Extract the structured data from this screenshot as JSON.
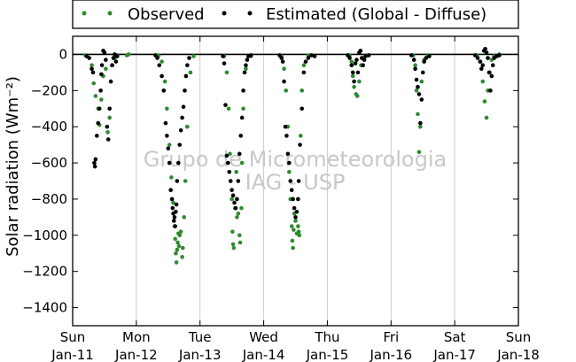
{
  "chart_data": {
    "type": "scatter",
    "ylabel": "Solar radiation (Wm⁻²)",
    "ylim": [
      -1500,
      100
    ],
    "yticks": [
      0,
      -200,
      -400,
      -600,
      -800,
      -1000,
      -1200,
      -1400
    ],
    "xlim": [
      0,
      7
    ],
    "xticks": [
      {
        "x": 0,
        "top": "Sun",
        "bottom": "Jan-11"
      },
      {
        "x": 1,
        "top": "Mon",
        "bottom": "Jan-12"
      },
      {
        "x": 2,
        "top": "Tue",
        "bottom": "Jan-13"
      },
      {
        "x": 3,
        "top": "Wed",
        "bottom": "Jan-14"
      },
      {
        "x": 4,
        "top": "Thu",
        "bottom": "Jan-15"
      },
      {
        "x": 5,
        "top": "Fri",
        "bottom": "Jan-16"
      },
      {
        "x": 6,
        "top": "Sat",
        "bottom": "Jan-17"
      },
      {
        "x": 7,
        "top": "Sun",
        "bottom": "Jan-18"
      }
    ],
    "grid": "vertical",
    "zero_line": true,
    "legend_position": "top-center",
    "watermark": [
      "Grupo de Micrometeorologia",
      "IAG - USP"
    ],
    "series": [
      {
        "name": "Observed",
        "color": "#2e8b2e",
        "marker": "dot",
        "points": [
          [
            0.2,
            -5
          ],
          [
            0.3,
            -60
          ],
          [
            0.33,
            -160
          ],
          [
            0.36,
            -230
          ],
          [
            0.4,
            -300
          ],
          [
            0.42,
            -390
          ],
          [
            0.45,
            -250
          ],
          [
            0.48,
            -120
          ],
          [
            0.52,
            -80
          ],
          [
            0.55,
            -430
          ],
          [
            0.58,
            -350
          ],
          [
            0.62,
            -60
          ],
          [
            0.66,
            -20
          ],
          [
            0.7,
            -5
          ],
          [
            0.85,
            -5
          ],
          [
            0.88,
            0
          ],
          [
            1.35,
            -5
          ],
          [
            1.4,
            -40
          ],
          [
            1.45,
            -150
          ],
          [
            1.48,
            -300
          ],
          [
            1.52,
            -500
          ],
          [
            1.55,
            -680
          ],
          [
            1.58,
            -820
          ],
          [
            1.6,
            -950
          ],
          [
            1.61,
            -1020
          ],
          [
            1.62,
            -1100
          ],
          [
            1.63,
            -1150
          ],
          [
            1.64,
            -1080
          ],
          [
            1.65,
            -1040
          ],
          [
            1.66,
            -990
          ],
          [
            1.67,
            -1060
          ],
          [
            1.68,
            -1000
          ],
          [
            1.7,
            -980
          ],
          [
            1.72,
            -1120
          ],
          [
            1.73,
            -1070
          ],
          [
            1.75,
            -900
          ],
          [
            1.77,
            -700
          ],
          [
            1.8,
            -400
          ],
          [
            1.85,
            -100
          ],
          [
            1.9,
            -10
          ],
          [
            2.38,
            -10
          ],
          [
            2.42,
            -100
          ],
          [
            2.45,
            -300
          ],
          [
            2.47,
            -550
          ],
          [
            2.48,
            -700
          ],
          [
            2.5,
            -800
          ],
          [
            2.51,
            -980
          ],
          [
            2.52,
            -1050
          ],
          [
            2.53,
            -1070
          ],
          [
            2.55,
            -850
          ],
          [
            2.57,
            -650
          ],
          [
            2.58,
            -900
          ],
          [
            2.6,
            -880
          ],
          [
            2.62,
            -1000
          ],
          [
            2.63,
            -1040
          ],
          [
            2.65,
            -850
          ],
          [
            2.66,
            -600
          ],
          [
            2.68,
            -300
          ],
          [
            2.72,
            -80
          ],
          [
            2.8,
            -10
          ],
          [
            3.28,
            -10
          ],
          [
            3.32,
            -80
          ],
          [
            3.35,
            -200
          ],
          [
            3.38,
            -400
          ],
          [
            3.4,
            -650
          ],
          [
            3.42,
            -800
          ],
          [
            3.44,
            -950
          ],
          [
            3.45,
            -1030
          ],
          [
            3.46,
            -1070
          ],
          [
            3.47,
            -970
          ],
          [
            3.48,
            -880
          ],
          [
            3.5,
            -920
          ],
          [
            3.52,
            -990
          ],
          [
            3.54,
            -950
          ],
          [
            3.55,
            -980
          ],
          [
            3.56,
            -1000
          ],
          [
            3.58,
            -450
          ],
          [
            3.6,
            -200
          ],
          [
            3.63,
            -60
          ],
          [
            3.7,
            -5
          ],
          [
            4.35,
            -5
          ],
          [
            4.38,
            -40
          ],
          [
            4.4,
            -120
          ],
          [
            4.42,
            -180
          ],
          [
            4.45,
            -220
          ],
          [
            4.47,
            -230
          ],
          [
            4.5,
            -150
          ],
          [
            4.53,
            -60
          ],
          [
            4.56,
            -20
          ],
          [
            4.6,
            -5
          ],
          [
            5.35,
            -5
          ],
          [
            5.38,
            -60
          ],
          [
            5.4,
            -200
          ],
          [
            5.42,
            -330
          ],
          [
            5.44,
            -540
          ],
          [
            5.46,
            -400
          ],
          [
            5.48,
            -150
          ],
          [
            5.52,
            -30
          ],
          [
            5.58,
            -5
          ],
          [
            6.35,
            -5
          ],
          [
            6.4,
            -40
          ],
          [
            6.44,
            -150
          ],
          [
            6.47,
            -260
          ],
          [
            6.5,
            -350
          ],
          [
            6.52,
            -200
          ],
          [
            6.55,
            -100
          ],
          [
            6.58,
            -30
          ],
          [
            6.62,
            -10
          ],
          [
            6.7,
            0
          ]
        ]
      },
      {
        "name": "Estimated (Global - Diffuse)",
        "color": "#000000",
        "marker": "dot",
        "points": [
          [
            0.22,
            -10
          ],
          [
            0.26,
            -20
          ],
          [
            0.3,
            -80
          ],
          [
            0.32,
            -100
          ],
          [
            0.34,
            -600
          ],
          [
            0.35,
            -620
          ],
          [
            0.36,
            -580
          ],
          [
            0.38,
            -450
          ],
          [
            0.4,
            -380
          ],
          [
            0.42,
            -300
          ],
          [
            0.44,
            -200
          ],
          [
            0.45,
            -110
          ],
          [
            0.46,
            -60
          ],
          [
            0.48,
            20
          ],
          [
            0.5,
            10
          ],
          [
            0.52,
            -30
          ],
          [
            0.54,
            -400
          ],
          [
            0.56,
            -470
          ],
          [
            0.58,
            -300
          ],
          [
            0.6,
            -150
          ],
          [
            0.62,
            -60
          ],
          [
            0.64,
            -20
          ],
          [
            0.66,
            0
          ],
          [
            0.68,
            -40
          ],
          [
            0.7,
            -10
          ],
          [
            1.3,
            -5
          ],
          [
            1.33,
            -20
          ],
          [
            1.36,
            -60
          ],
          [
            1.4,
            -120
          ],
          [
            1.43,
            -200
          ],
          [
            1.46,
            -380
          ],
          [
            1.48,
            -450
          ],
          [
            1.5,
            -520
          ],
          [
            1.52,
            -600
          ],
          [
            1.54,
            -750
          ],
          [
            1.56,
            -800
          ],
          [
            1.57,
            -850
          ],
          [
            1.58,
            -880
          ],
          [
            1.59,
            -920
          ],
          [
            1.6,
            -900
          ],
          [
            1.61,
            -950
          ],
          [
            1.62,
            -870
          ],
          [
            1.63,
            -830
          ],
          [
            1.64,
            -700
          ],
          [
            1.66,
            -600
          ],
          [
            1.68,
            -500
          ],
          [
            1.7,
            -420
          ],
          [
            1.72,
            -350
          ],
          [
            1.74,
            -290
          ],
          [
            1.76,
            -200
          ],
          [
            1.78,
            -120
          ],
          [
            1.8,
            -60
          ],
          [
            1.83,
            -20
          ],
          [
            2.36,
            -10
          ],
          [
            2.38,
            -50
          ],
          [
            2.4,
            -280
          ],
          [
            2.42,
            -560
          ],
          [
            2.44,
            -600
          ],
          [
            2.46,
            -650
          ],
          [
            2.48,
            -700
          ],
          [
            2.5,
            -750
          ],
          [
            2.52,
            -780
          ],
          [
            2.54,
            -820
          ],
          [
            2.56,
            -850
          ],
          [
            2.58,
            -800
          ],
          [
            2.6,
            -700
          ],
          [
            2.62,
            -550
          ],
          [
            2.64,
            -450
          ],
          [
            2.66,
            -350
          ],
          [
            2.68,
            -200
          ],
          [
            2.7,
            -100
          ],
          [
            2.72,
            -60
          ],
          [
            2.74,
            -30
          ],
          [
            2.76,
            -10
          ],
          [
            2.8,
            -5
          ],
          [
            3.25,
            -5
          ],
          [
            3.28,
            -20
          ],
          [
            3.3,
            -40
          ],
          [
            3.32,
            -150
          ],
          [
            3.34,
            -400
          ],
          [
            3.36,
            -450
          ],
          [
            3.38,
            -550
          ],
          [
            3.4,
            -600
          ],
          [
            3.42,
            -700
          ],
          [
            3.44,
            -750
          ],
          [
            3.46,
            -800
          ],
          [
            3.48,
            -850
          ],
          [
            3.5,
            -900
          ],
          [
            3.52,
            -870
          ],
          [
            3.54,
            -800
          ],
          [
            3.55,
            -700
          ],
          [
            3.57,
            -500
          ],
          [
            3.6,
            -300
          ],
          [
            3.63,
            -100
          ],
          [
            3.66,
            -40
          ],
          [
            3.7,
            -20
          ],
          [
            3.75,
            -5
          ],
          [
            3.8,
            -10
          ],
          [
            4.32,
            -5
          ],
          [
            4.35,
            -20
          ],
          [
            4.38,
            -60
          ],
          [
            4.4,
            -100
          ],
          [
            4.42,
            -150
          ],
          [
            4.44,
            -50
          ],
          [
            4.46,
            -30
          ],
          [
            4.48,
            -100
          ],
          [
            4.5,
            10
          ],
          [
            4.52,
            20
          ],
          [
            4.54,
            -20
          ],
          [
            4.56,
            -60
          ],
          [
            4.58,
            -30
          ],
          [
            4.6,
            -10
          ],
          [
            4.65,
            -5
          ],
          [
            5.32,
            -5
          ],
          [
            5.36,
            -30
          ],
          [
            5.38,
            -80
          ],
          [
            5.4,
            -140
          ],
          [
            5.42,
            -180
          ],
          [
            5.44,
            -220
          ],
          [
            5.46,
            -380
          ],
          [
            5.48,
            -250
          ],
          [
            5.5,
            -100
          ],
          [
            5.52,
            -40
          ],
          [
            5.55,
            -20
          ],
          [
            5.6,
            -10
          ],
          [
            6.32,
            -5
          ],
          [
            6.36,
            -20
          ],
          [
            6.4,
            -40
          ],
          [
            6.42,
            -80
          ],
          [
            6.44,
            -60
          ],
          [
            6.46,
            20
          ],
          [
            6.48,
            30
          ],
          [
            6.5,
            10
          ],
          [
            6.52,
            -20
          ],
          [
            6.54,
            -100
          ],
          [
            6.56,
            -200
          ],
          [
            6.58,
            -120
          ],
          [
            6.6,
            -60
          ],
          [
            6.62,
            -20
          ],
          [
            6.66,
            -10
          ],
          [
            6.7,
            -5
          ]
        ]
      }
    ]
  }
}
